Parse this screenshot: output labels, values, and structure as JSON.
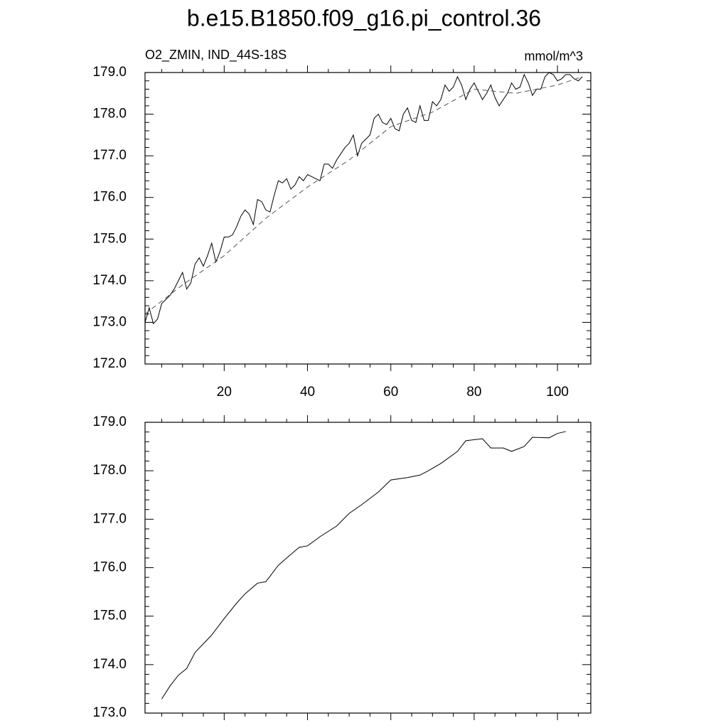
{
  "chart_data": [
    {
      "type": "line",
      "title": "b.e15.B1850.f09_g16.pi_control.36",
      "subtitle": "O2_ZMIN, IND_44S-18S",
      "units": "mmol/m^3",
      "xlim": [
        1,
        108
      ],
      "xticks": [
        20,
        40,
        60,
        80,
        100
      ],
      "ylim": [
        172,
        179
      ],
      "yticks": [
        {
          "value": 172,
          "label": "172.0"
        },
        {
          "value": 173,
          "label": "173.0"
        },
        {
          "value": 174,
          "label": "174.0"
        },
        {
          "value": 175,
          "label": "175.0"
        },
        {
          "value": 176,
          "label": "176.0"
        },
        {
          "value": 177,
          "label": "177.0"
        },
        {
          "value": 178,
          "label": "178.0"
        },
        {
          "value": 179,
          "label": "179.0"
        }
      ],
      "series": [
        {
          "color": "#000000",
          "style": "solid",
          "x": [
            1,
            2,
            3,
            4,
            5,
            6,
            7,
            8,
            9,
            10,
            11,
            12,
            13,
            14,
            15,
            16,
            17,
            18,
            19,
            20,
            21,
            22,
            23,
            24,
            25,
            26,
            27,
            28,
            29,
            30,
            31,
            32,
            33,
            34,
            35,
            36,
            37,
            38,
            39,
            40,
            41,
            42,
            43,
            44,
            45,
            46,
            47,
            48,
            49,
            50,
            51,
            52,
            53,
            54,
            55,
            56,
            57,
            58,
            59,
            60,
            61,
            62,
            63,
            64,
            65,
            66,
            67,
            68,
            69,
            70,
            71,
            72,
            73,
            74,
            75,
            76,
            77,
            78,
            79,
            80,
            81,
            82,
            83,
            84,
            85,
            86,
            87,
            88,
            89,
            90,
            91,
            92,
            93,
            94,
            95,
            96,
            97,
            98,
            99,
            100,
            101,
            102,
            103,
            104,
            105,
            106
          ],
          "values": [
            173.0,
            173.35,
            172.97,
            173.08,
            173.45,
            173.55,
            173.65,
            173.8,
            174.0,
            174.2,
            173.8,
            173.95,
            174.4,
            174.55,
            174.35,
            174.6,
            174.9,
            174.45,
            174.7,
            175.05,
            175.05,
            175.1,
            175.3,
            175.55,
            175.7,
            175.6,
            175.35,
            175.95,
            175.9,
            175.7,
            175.65,
            176.05,
            176.4,
            176.35,
            176.45,
            176.2,
            176.3,
            176.5,
            176.4,
            176.55,
            176.5,
            176.45,
            176.4,
            176.8,
            176.8,
            176.7,
            176.9,
            177.05,
            177.2,
            177.3,
            177.5,
            177.0,
            177.3,
            177.4,
            177.5,
            177.9,
            178.0,
            177.8,
            177.75,
            177.9,
            177.65,
            177.6,
            178.0,
            178.15,
            177.85,
            177.8,
            178.2,
            177.85,
            177.85,
            178.3,
            178.2,
            178.35,
            178.7,
            178.55,
            178.65,
            178.9,
            178.7,
            178.35,
            178.6,
            178.75,
            178.55,
            178.35,
            178.5,
            178.7,
            178.4,
            178.2,
            178.35,
            178.5,
            178.75,
            178.6,
            178.65,
            178.95,
            178.75,
            178.45,
            178.6,
            178.6,
            178.9,
            179.0,
            178.95,
            178.8,
            178.85,
            178.95,
            178.95,
            178.85,
            178.8,
            178.9
          ]
        },
        {
          "color": "#555555",
          "style": "dashed",
          "x": [
            1,
            10,
            20,
            30,
            40,
            50,
            60,
            70,
            80,
            90,
            100,
            106
          ],
          "values": [
            173.2,
            173.9,
            174.6,
            175.5,
            176.25,
            176.9,
            177.7,
            178.05,
            178.6,
            178.5,
            178.7,
            178.9
          ]
        }
      ]
    },
    {
      "type": "line",
      "xlim": [
        1,
        108
      ],
      "xticks": [
        20,
        40,
        60,
        80,
        100
      ],
      "ylim": [
        173,
        179
      ],
      "yticks": [
        {
          "value": 173,
          "label": "173.0"
        },
        {
          "value": 174,
          "label": "174.0"
        },
        {
          "value": 175,
          "label": "175.0"
        },
        {
          "value": 176,
          "label": "176.0"
        },
        {
          "value": 177,
          "label": "177.0"
        },
        {
          "value": 178,
          "label": "178.0"
        },
        {
          "value": 179,
          "label": "179.0"
        }
      ],
      "series": [
        {
          "color": "#000000",
          "style": "solid",
          "x": [
            5,
            7,
            9,
            11,
            13,
            17,
            20,
            23,
            25,
            28,
            30,
            33,
            35,
            38,
            40,
            43,
            47,
            50,
            53,
            57,
            60,
            64,
            67,
            69,
            72,
            76,
            78,
            82,
            84,
            87,
            89,
            92,
            94,
            98,
            100,
            102
          ],
          "values": [
            173.29,
            173.56,
            173.78,
            173.92,
            174.25,
            174.61,
            174.95,
            175.27,
            175.46,
            175.68,
            175.71,
            176.05,
            176.2,
            176.42,
            176.45,
            176.64,
            176.86,
            177.12,
            177.3,
            177.56,
            177.81,
            177.86,
            177.91,
            178.0,
            178.15,
            178.4,
            178.62,
            178.66,
            178.47,
            178.47,
            178.4,
            178.5,
            178.69,
            178.68,
            178.77,
            178.81
          ]
        }
      ]
    }
  ]
}
